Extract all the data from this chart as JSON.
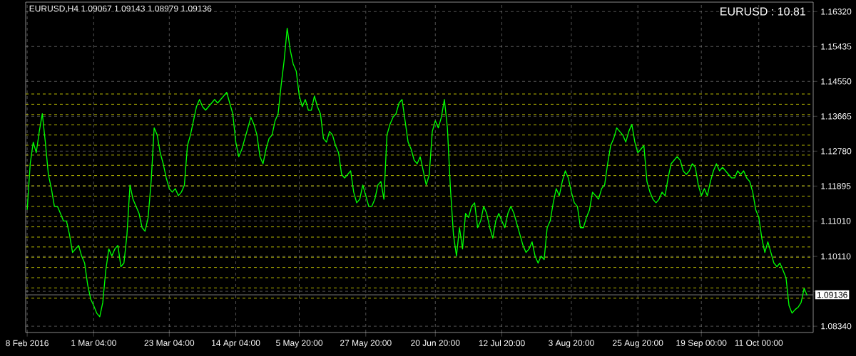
{
  "chart_data": {
    "type": "line",
    "title": "EURUSD,H4 1.09067 1.09143 1.08979 1.09136",
    "annotations": [
      "EURUSD : 10.81"
    ],
    "categories": [
      "8 Feb 2016",
      null,
      null,
      null,
      null,
      null,
      null,
      null,
      null,
      null,
      null,
      null,
      null,
      null,
      null,
      null,
      null,
      null,
      null,
      null,
      null,
      null,
      "1 Mar 04:00",
      null,
      null,
      null,
      null,
      null,
      null,
      null,
      null,
      null,
      null,
      null,
      null,
      null,
      null,
      null,
      null,
      null,
      null,
      null,
      null,
      null,
      null,
      null,
      null,
      "23 Mar 04:00",
      null,
      null,
      null,
      null,
      null,
      null,
      null,
      null,
      null,
      null,
      null,
      null,
      null,
      null,
      null,
      null,
      null,
      null,
      null,
      null,
      null,
      "14 Apr 04:00",
      null,
      null,
      null,
      null,
      null,
      null,
      null,
      null,
      null,
      null,
      null,
      null,
      null,
      null,
      null,
      null,
      null,
      null,
      null,
      null,
      "5 May 20:00",
      null,
      null,
      null,
      null,
      null,
      null,
      null,
      null,
      null,
      null,
      null,
      null,
      null,
      null,
      null,
      null,
      null,
      null,
      null,
      null,
      null,
      "27 May 20:00",
      null,
      null,
      null,
      null,
      null,
      null,
      null,
      null,
      null,
      null,
      null,
      null,
      null,
      null,
      null,
      null,
      null,
      null,
      null,
      null,
      null,
      null,
      "20 Jun 20:00",
      null,
      null,
      null,
      null,
      null,
      null,
      null,
      null,
      null,
      null,
      null,
      null,
      null,
      null,
      null,
      null,
      null,
      null,
      null,
      null,
      null,
      "12 Jul 20:00",
      null,
      null,
      null,
      null,
      null,
      null,
      null,
      null,
      null,
      null,
      null,
      null,
      null,
      null,
      null,
      null,
      null,
      null,
      null,
      null,
      null,
      null,
      "3 Aug 20:00",
      null,
      null,
      null,
      null,
      null,
      null,
      null,
      null,
      null,
      null,
      null,
      null,
      null,
      null,
      null,
      null,
      null,
      null,
      null,
      null,
      null,
      "25 Aug 20:00",
      null,
      null,
      null,
      null,
      null,
      null,
      null,
      null,
      null,
      null,
      null,
      null,
      null,
      null,
      null,
      null,
      null,
      null,
      null,
      null,
      "19 Sep 00:00",
      null,
      null,
      null,
      null,
      null,
      null,
      null,
      null,
      null,
      null,
      null,
      null,
      null,
      null,
      null,
      null,
      null,
      null,
      "11 Oct 00:00",
      null,
      null,
      null,
      null,
      null,
      null,
      null,
      null,
      null,
      null,
      null,
      null,
      null,
      null,
      null,
      null
    ],
    "series": [
      {
        "color": "#00ff00",
        "values": [
          1.1129,
          1.1246,
          1.1301,
          1.1274,
          1.1328,
          1.1373,
          1.1301,
          1.1219,
          1.1183,
          1.1138,
          1.1138,
          1.112,
          1.1101,
          1.1101,
          1.1066,
          1.1021,
          1.103,
          1.1039,
          1.1012,
          1.0994,
          1.0939,
          1.0903,
          1.0886,
          1.0867,
          1.0858,
          1.0894,
          1.0976,
          1.103,
          1.1012,
          1.103,
          1.1039,
          1.0985,
          1.0994,
          1.1066,
          1.1192,
          1.1156,
          1.1138,
          1.112,
          1.1084,
          1.1075,
          1.111,
          1.1201,
          1.1337,
          1.1319,
          1.1274,
          1.1246,
          1.121,
          1.1183,
          1.1174,
          1.1183,
          1.1165,
          1.1174,
          1.1192,
          1.1292,
          1.1319,
          1.1355,
          1.1391,
          1.1409,
          1.1391,
          1.1382,
          1.1391,
          1.14,
          1.1409,
          1.14,
          1.1409,
          1.1418,
          1.1427,
          1.14,
          1.1373,
          1.1301,
          1.1264,
          1.1283,
          1.131,
          1.1337,
          1.1364,
          1.1346,
          1.1319,
          1.1264,
          1.1246,
          1.1283,
          1.131,
          1.1319,
          1.1355,
          1.1373,
          1.1445,
          1.1508,
          1.159,
          1.1535,
          1.1499,
          1.1481,
          1.1418,
          1.1391,
          1.1409,
          1.1382,
          1.1382,
          1.1418,
          1.1391,
          1.1373,
          1.131,
          1.1301,
          1.1328,
          1.1319,
          1.1292,
          1.1274,
          1.1219,
          1.121,
          1.1219,
          1.1228,
          1.1174,
          1.1147,
          1.1156,
          1.1192,
          1.1165,
          1.1138,
          1.1138,
          1.1156,
          1.1192,
          1.1201,
          1.1156,
          1.1319,
          1.1346,
          1.1364,
          1.1373,
          1.14,
          1.1409,
          1.1355,
          1.1301,
          1.1283,
          1.1255,
          1.1246,
          1.1264,
          1.1228,
          1.1192,
          1.1219,
          1.1328,
          1.1355,
          1.1337,
          1.1364,
          1.1409,
          1.1337,
          1.1183,
          1.1066,
          1.1012,
          1.1084,
          1.103,
          1.112,
          1.111,
          1.1138,
          1.1147,
          1.1084,
          1.1101,
          1.1138,
          1.112,
          1.1084,
          1.1057,
          1.1101,
          1.112,
          1.1101,
          1.1084,
          1.112,
          1.1138,
          1.112,
          1.1093,
          1.1066,
          1.1039,
          1.1021,
          1.103,
          1.1048,
          1.1012,
          1.0994,
          1.1012,
          1.1003,
          1.1084,
          1.1101,
          1.1147,
          1.1183,
          1.1165,
          1.1201,
          1.1228,
          1.121,
          1.1174,
          1.1147,
          1.1138,
          1.1084,
          1.1084,
          1.111,
          1.1129,
          1.1174,
          1.1165,
          1.1156,
          1.1183,
          1.1192,
          1.1246,
          1.1292,
          1.131,
          1.1337,
          1.1328,
          1.1319,
          1.1301,
          1.1328,
          1.1346,
          1.1301,
          1.1274,
          1.1283,
          1.1292,
          1.1201,
          1.1174,
          1.1156,
          1.1147,
          1.1156,
          1.1174,
          1.1165,
          1.121,
          1.1246,
          1.1255,
          1.1264,
          1.1255,
          1.1228,
          1.1219,
          1.1228,
          1.1246,
          1.1237,
          1.1192,
          1.1165,
          1.1183,
          1.1165,
          1.1201,
          1.1228,
          1.1246,
          1.1228,
          1.1237,
          1.1228,
          1.1219,
          1.121,
          1.121,
          1.1228,
          1.1219,
          1.1228,
          1.121,
          1.1201,
          1.1174,
          1.1129,
          1.111,
          1.1057,
          1.1021,
          1.1048,
          1.1021,
          1.0994,
          1.0985,
          1.0994,
          1.0976,
          1.0957,
          1.0886,
          1.0867,
          1.0876,
          1.0882,
          1.0894,
          1.093,
          1.0912
        ]
      }
    ],
    "ylim": [
      1.0818,
      1.1656
    ],
    "yticks": [
      {
        "value": 1.0834,
        "label": "1.08340"
      },
      {
        "value": 1.09225,
        "label": null
      },
      {
        "value": 1.1011,
        "label": "1.10110"
      },
      {
        "value": 1.1101,
        "label": "1.11010"
      },
      {
        "value": 1.11895,
        "label": "1.11895"
      },
      {
        "value": 1.1278,
        "label": "1.12780"
      },
      {
        "value": 1.13665,
        "label": "1.13665"
      },
      {
        "value": 1.1455,
        "label": "1.14550"
      },
      {
        "value": 1.15435,
        "label": "1.15435"
      },
      {
        "value": 1.1632,
        "label": "1.16320"
      }
    ],
    "grid": true,
    "ref_lines": [
      {
        "axis": "y",
        "value": 1.1423,
        "color": "#e6e600",
        "line_style": "dashed"
      },
      {
        "axis": "y",
        "value": 1.1397,
        "color": "#e6e600",
        "line_style": "dashed"
      },
      {
        "axis": "y",
        "value": 1.1371,
        "color": "#e6e600",
        "line_style": "dashed"
      },
      {
        "axis": "y",
        "value": 1.1345,
        "color": "#e6e600",
        "line_style": "dashed"
      },
      {
        "axis": "y",
        "value": 1.1319,
        "color": "#e6e600",
        "line_style": "dashed"
      },
      {
        "axis": "y",
        "value": 1.1293,
        "color": "#e6e600",
        "line_style": "dashed"
      },
      {
        "axis": "y",
        "value": 1.1268,
        "color": "#e6e600",
        "line_style": "dashed"
      },
      {
        "axis": "y",
        "value": 1.1242,
        "color": "#e6e600",
        "line_style": "dashed"
      },
      {
        "axis": "y",
        "value": 1.1216,
        "color": "#e6e600",
        "line_style": "dashed"
      },
      {
        "axis": "y",
        "value": 1.119,
        "color": "#e6e600",
        "line_style": "dashed"
      },
      {
        "axis": "y",
        "value": 1.1164,
        "color": "#e6e600",
        "line_style": "dashed"
      },
      {
        "axis": "y",
        "value": 1.1138,
        "color": "#e6e600",
        "line_style": "dashed"
      },
      {
        "axis": "y",
        "value": 1.1112,
        "color": "#e6e600",
        "line_style": "dashed"
      },
      {
        "axis": "y",
        "value": 1.1086,
        "color": "#e6e600",
        "line_style": "dashed"
      },
      {
        "axis": "y",
        "value": 1.106,
        "color": "#e6e600",
        "line_style": "dashed"
      },
      {
        "axis": "y",
        "value": 1.1035,
        "color": "#e6e600",
        "line_style": "dashed"
      },
      {
        "axis": "y",
        "value": 1.1009,
        "color": "#e6e600",
        "line_style": "dashed"
      },
      {
        "axis": "y",
        "value": 1.0983,
        "color": "#e6e600",
        "line_style": "dashed"
      },
      {
        "axis": "y",
        "value": 1.0957,
        "color": "#e6e600",
        "line_style": "dashed"
      },
      {
        "axis": "y",
        "value": 1.0931,
        "color": "#e6e600",
        "line_style": "dashed"
      },
      {
        "axis": "y",
        "value": 1.0905,
        "color": "#e6e600",
        "line_style": "dashed"
      },
      {
        "axis": "y",
        "value": 1.09136,
        "label": "1.09136",
        "color": "#a0a0a0",
        "line_style": "solid"
      }
    ]
  }
}
